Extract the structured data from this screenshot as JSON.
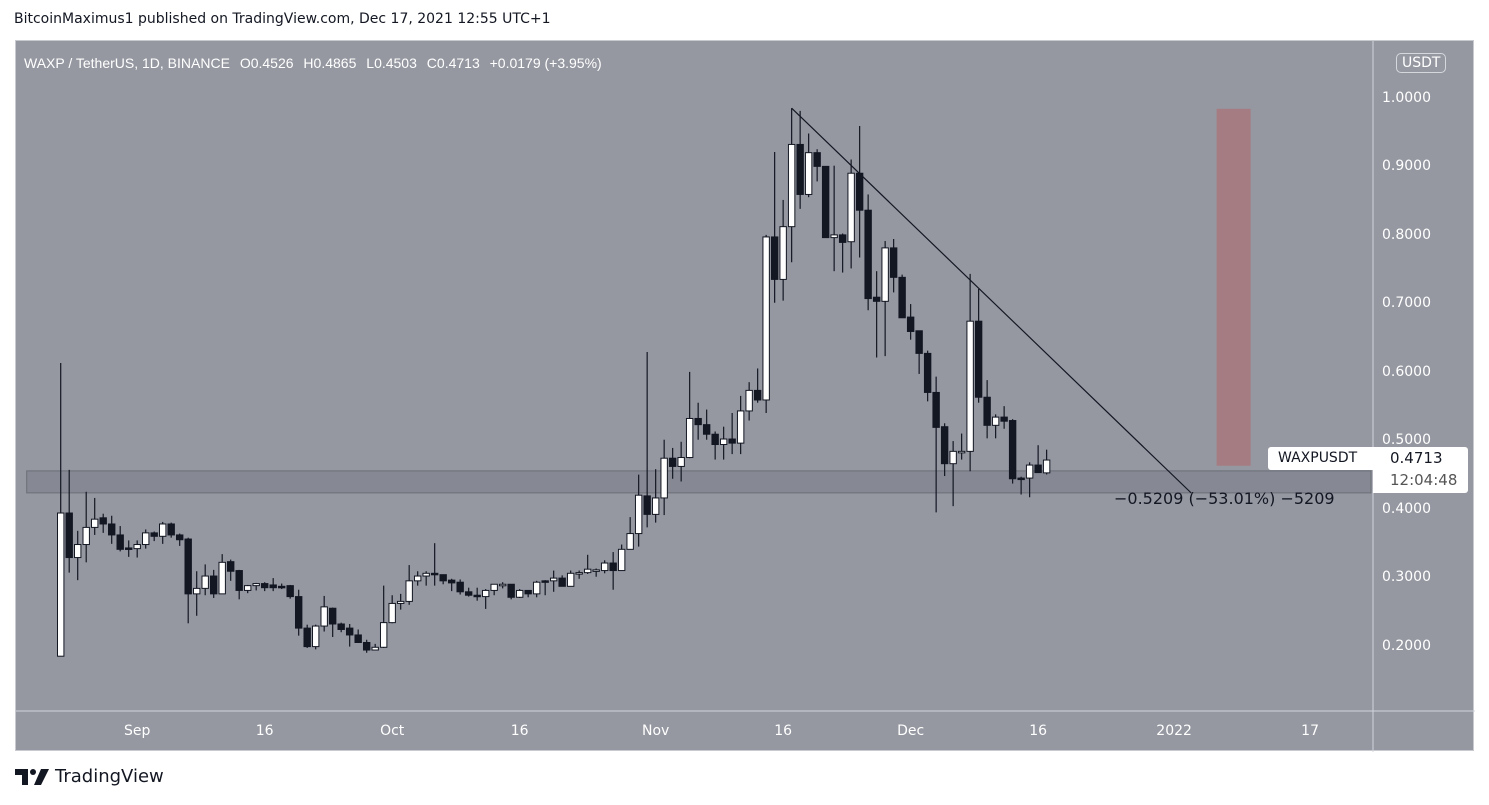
{
  "publish_bar": "BitcoinMaximus1 published on TradingView.com, Dec 17, 2021 12:55 UTC+1",
  "legend": {
    "symbol": "WAXP / TetherUS, 1D, BINANCE",
    "o_key": "O",
    "o": "0.4526",
    "h_key": "H",
    "h": "0.4865",
    "l_key": "L",
    "l": "0.4503",
    "c_key": "C",
    "c": "0.4713",
    "change": "+0.0179 (+3.95%)"
  },
  "price_label": {
    "name": "WAXPUSDT",
    "value": "0.4713",
    "countdown": "12:04:48"
  },
  "measure_label": "−0.5209 (−53.01%) −5209",
  "footer": {
    "brand": "TradingView"
  },
  "colors": {
    "background": "#9598a1",
    "up_body": "#ffffff",
    "down_body": "#131722",
    "zone": "#868993",
    "target_box": "#a67c83",
    "line": "#131722"
  },
  "chart_data": {
    "type": "candlestick",
    "unit": "USDT",
    "ylim": [
      0.105,
      1.083
    ],
    "xlim": [
      "2021-08-17",
      "2022-01-24"
    ],
    "y_ticks": [
      "1.0000",
      "0.9000",
      "0.8000",
      "0.7000",
      "0.6000",
      "0.5000",
      "0.4000",
      "0.3000",
      "0.2000"
    ],
    "x_ticks": [
      {
        "date": "2021-09-01",
        "label": "Sep"
      },
      {
        "date": "2021-09-16",
        "label": "16"
      },
      {
        "date": "2021-10-01",
        "label": "Oct"
      },
      {
        "date": "2021-10-16",
        "label": "16"
      },
      {
        "date": "2021-11-01",
        "label": "Nov"
      },
      {
        "date": "2021-11-16",
        "label": "16"
      },
      {
        "date": "2021-12-01",
        "label": "Dec"
      },
      {
        "date": "2021-12-16",
        "label": "16"
      },
      {
        "date": "2022-01-01",
        "label": "2022"
      },
      {
        "date": "2022-01-17",
        "label": "17"
      }
    ],
    "grid": false,
    "candles_format": [
      "date",
      "open",
      "high",
      "low",
      "close"
    ],
    "candles": [
      [
        "2021-08-23",
        0.185,
        0.613,
        0.185,
        0.394
      ],
      [
        "2021-08-24",
        0.394,
        0.457,
        0.307,
        0.329
      ],
      [
        "2021-08-25",
        0.329,
        0.368,
        0.296,
        0.348
      ],
      [
        "2021-08-26",
        0.348,
        0.425,
        0.322,
        0.373
      ],
      [
        "2021-08-27",
        0.373,
        0.416,
        0.362,
        0.385
      ],
      [
        "2021-08-28",
        0.387,
        0.393,
        0.365,
        0.378
      ],
      [
        "2021-08-29",
        0.378,
        0.39,
        0.349,
        0.362
      ],
      [
        "2021-08-30",
        0.362,
        0.375,
        0.338,
        0.341
      ],
      [
        "2021-08-31",
        0.343,
        0.354,
        0.33,
        0.342
      ],
      [
        "2021-09-01",
        0.342,
        0.354,
        0.329,
        0.348
      ],
      [
        "2021-09-02",
        0.348,
        0.37,
        0.342,
        0.365
      ],
      [
        "2021-09-03",
        0.365,
        0.367,
        0.353,
        0.36
      ],
      [
        "2021-09-04",
        0.36,
        0.381,
        0.349,
        0.378
      ],
      [
        "2021-09-05",
        0.378,
        0.38,
        0.358,
        0.362
      ],
      [
        "2021-09-06",
        0.362,
        0.364,
        0.346,
        0.355
      ],
      [
        "2021-09-07",
        0.356,
        0.358,
        0.233,
        0.276
      ],
      [
        "2021-09-08",
        0.276,
        0.309,
        0.244,
        0.284
      ],
      [
        "2021-09-09",
        0.284,
        0.319,
        0.274,
        0.302
      ],
      [
        "2021-09-10",
        0.302,
        0.311,
        0.27,
        0.276
      ],
      [
        "2021-09-11",
        0.276,
        0.334,
        0.276,
        0.322
      ],
      [
        "2021-09-12",
        0.323,
        0.326,
        0.295,
        0.309
      ],
      [
        "2021-09-13",
        0.31,
        0.311,
        0.268,
        0.281
      ],
      [
        "2021-09-14",
        0.281,
        0.289,
        0.277,
        0.288
      ],
      [
        "2021-09-15",
        0.288,
        0.292,
        0.281,
        0.291
      ],
      [
        "2021-09-16",
        0.291,
        0.293,
        0.28,
        0.285
      ],
      [
        "2021-09-17",
        0.289,
        0.299,
        0.28,
        0.285
      ],
      [
        "2021-09-18",
        0.287,
        0.291,
        0.283,
        0.286
      ],
      [
        "2021-09-19",
        0.288,
        0.289,
        0.269,
        0.272
      ],
      [
        "2021-09-20",
        0.272,
        0.282,
        0.215,
        0.226
      ],
      [
        "2021-09-21",
        0.226,
        0.231,
        0.197,
        0.199
      ],
      [
        "2021-09-22",
        0.199,
        0.231,
        0.195,
        0.229
      ],
      [
        "2021-09-23",
        0.229,
        0.273,
        0.221,
        0.257
      ],
      [
        "2021-09-24",
        0.255,
        0.256,
        0.213,
        0.232
      ],
      [
        "2021-09-25",
        0.232,
        0.234,
        0.22,
        0.224
      ],
      [
        "2021-09-26",
        0.226,
        0.232,
        0.199,
        0.216
      ],
      [
        "2021-09-27",
        0.216,
        0.224,
        0.205,
        0.205
      ],
      [
        "2021-09-28",
        0.205,
        0.209,
        0.19,
        0.194
      ],
      [
        "2021-09-29",
        0.194,
        0.203,
        0.194,
        0.198
      ],
      [
        "2021-09-30",
        0.198,
        0.288,
        0.197,
        0.234
      ],
      [
        "2021-10-01",
        0.234,
        0.274,
        0.233,
        0.262
      ],
      [
        "2021-10-02",
        0.262,
        0.276,
        0.253,
        0.265
      ],
      [
        "2021-10-03",
        0.265,
        0.318,
        0.26,
        0.295
      ],
      [
        "2021-10-04",
        0.295,
        0.309,
        0.288,
        0.302
      ],
      [
        "2021-10-05",
        0.302,
        0.309,
        0.288,
        0.306
      ],
      [
        "2021-10-06",
        0.306,
        0.35,
        0.288,
        0.304
      ],
      [
        "2021-10-07",
        0.304,
        0.304,
        0.29,
        0.295
      ],
      [
        "2021-10-08",
        0.296,
        0.298,
        0.28,
        0.292
      ],
      [
        "2021-10-09",
        0.293,
        0.297,
        0.275,
        0.279
      ],
      [
        "2021-10-10",
        0.279,
        0.285,
        0.272,
        0.274
      ],
      [
        "2021-10-11",
        0.274,
        0.285,
        0.266,
        0.273
      ],
      [
        "2021-10-12",
        0.272,
        0.283,
        0.254,
        0.281
      ],
      [
        "2021-10-13",
        0.281,
        0.29,
        0.274,
        0.29
      ],
      [
        "2021-10-14",
        0.289,
        0.293,
        0.284,
        0.29
      ],
      [
        "2021-10-15",
        0.29,
        0.29,
        0.268,
        0.271
      ],
      [
        "2021-10-16",
        0.271,
        0.283,
        0.27,
        0.281
      ],
      [
        "2021-10-17",
        0.281,
        0.281,
        0.271,
        0.276
      ],
      [
        "2021-10-18",
        0.276,
        0.295,
        0.271,
        0.293
      ],
      [
        "2021-10-19",
        0.295,
        0.296,
        0.274,
        0.294
      ],
      [
        "2021-10-20",
        0.295,
        0.31,
        0.279,
        0.299
      ],
      [
        "2021-10-21",
        0.299,
        0.303,
        0.287,
        0.287
      ],
      [
        "2021-10-22",
        0.287,
        0.31,
        0.287,
        0.306
      ],
      [
        "2021-10-23",
        0.306,
        0.31,
        0.298,
        0.307
      ],
      [
        "2021-10-24",
        0.307,
        0.333,
        0.305,
        0.312
      ],
      [
        "2021-10-25",
        0.311,
        0.313,
        0.301,
        0.311
      ],
      [
        "2021-10-26",
        0.31,
        0.325,
        0.306,
        0.321
      ],
      [
        "2021-10-27",
        0.321,
        0.337,
        0.282,
        0.31
      ],
      [
        "2021-10-28",
        0.31,
        0.348,
        0.31,
        0.341
      ],
      [
        "2021-10-29",
        0.341,
        0.388,
        0.341,
        0.364
      ],
      [
        "2021-10-30",
        0.364,
        0.45,
        0.345,
        0.42
      ],
      [
        "2021-10-31",
        0.419,
        0.629,
        0.373,
        0.392
      ],
      [
        "2021-11-01",
        0.392,
        0.458,
        0.38,
        0.416
      ],
      [
        "2021-11-02",
        0.416,
        0.501,
        0.391,
        0.474
      ],
      [
        "2021-11-03",
        0.474,
        0.489,
        0.444,
        0.462
      ],
      [
        "2021-11-04",
        0.462,
        0.498,
        0.44,
        0.475
      ],
      [
        "2021-11-05",
        0.475,
        0.6,
        0.474,
        0.532
      ],
      [
        "2021-11-06",
        0.532,
        0.555,
        0.501,
        0.523
      ],
      [
        "2021-11-07",
        0.523,
        0.545,
        0.501,
        0.509
      ],
      [
        "2021-11-08",
        0.509,
        0.513,
        0.472,
        0.494
      ],
      [
        "2021-11-09",
        0.494,
        0.52,
        0.472,
        0.502
      ],
      [
        "2021-11-10",
        0.502,
        0.54,
        0.48,
        0.496
      ],
      [
        "2021-11-11",
        0.496,
        0.565,
        0.48,
        0.543
      ],
      [
        "2021-11-12",
        0.543,
        0.585,
        0.529,
        0.573
      ],
      [
        "2021-11-13",
        0.573,
        0.605,
        0.555,
        0.559
      ],
      [
        "2021-11-14",
        0.559,
        0.8,
        0.54,
        0.797
      ],
      [
        "2021-11-15",
        0.797,
        0.921,
        0.701,
        0.735
      ],
      [
        "2021-11-16",
        0.735,
        0.851,
        0.704,
        0.812
      ],
      [
        "2021-11-17",
        0.812,
        0.985,
        0.76,
        0.932
      ],
      [
        "2021-11-18",
        0.932,
        0.981,
        0.838,
        0.859
      ],
      [
        "2021-11-19",
        0.859,
        0.948,
        0.855,
        0.92
      ],
      [
        "2021-11-20",
        0.92,
        0.925,
        0.878,
        0.9
      ],
      [
        "2021-11-21",
        0.9,
        0.9,
        0.796,
        0.796
      ],
      [
        "2021-11-22",
        0.796,
        0.901,
        0.747,
        0.8
      ],
      [
        "2021-11-23",
        0.8,
        0.802,
        0.745,
        0.789
      ],
      [
        "2021-11-24",
        0.79,
        0.91,
        0.751,
        0.89
      ],
      [
        "2021-11-25",
        0.89,
        0.959,
        0.767,
        0.836
      ],
      [
        "2021-11-26",
        0.836,
        0.859,
        0.69,
        0.707
      ],
      [
        "2021-11-27",
        0.709,
        0.747,
        0.621,
        0.703
      ],
      [
        "2021-11-28",
        0.703,
        0.791,
        0.623,
        0.781
      ],
      [
        "2021-11-29",
        0.781,
        0.794,
        0.716,
        0.738
      ],
      [
        "2021-11-30",
        0.738,
        0.742,
        0.679,
        0.679
      ],
      [
        "2021-12-01",
        0.68,
        0.699,
        0.647,
        0.659
      ],
      [
        "2021-12-02",
        0.66,
        0.66,
        0.597,
        0.627
      ],
      [
        "2021-12-03",
        0.627,
        0.631,
        0.557,
        0.57
      ],
      [
        "2021-12-04",
        0.57,
        0.593,
        0.395,
        0.519
      ],
      [
        "2021-12-05",
        0.52,
        0.525,
        0.448,
        0.466
      ],
      [
        "2021-12-06",
        0.466,
        0.499,
        0.404,
        0.484
      ],
      [
        "2021-12-07",
        0.484,
        0.51,
        0.472,
        0.484
      ],
      [
        "2021-12-08",
        0.484,
        0.743,
        0.455,
        0.674
      ],
      [
        "2021-12-09",
        0.674,
        0.721,
        0.555,
        0.563
      ],
      [
        "2021-12-10",
        0.563,
        0.588,
        0.503,
        0.522
      ],
      [
        "2021-12-11",
        0.522,
        0.538,
        0.503,
        0.534
      ],
      [
        "2021-12-12",
        0.534,
        0.55,
        0.517,
        0.528
      ],
      [
        "2021-12-13",
        0.529,
        0.531,
        0.437,
        0.444
      ],
      [
        "2021-12-14",
        0.445,
        0.447,
        0.421,
        0.444
      ],
      [
        "2021-12-15",
        0.445,
        0.468,
        0.417,
        0.464
      ],
      [
        "2021-12-16",
        0.464,
        0.493,
        0.453,
        0.453
      ],
      [
        "2021-12-17",
        0.4526,
        0.4865,
        0.4503,
        0.4713
      ]
    ],
    "annotations": {
      "support_zone": {
        "from": "2021-08-19",
        "to": "2022-01-24",
        "low": 0.4234,
        "high": 0.4555
      },
      "trendline": {
        "start": [
          "2021-11-17",
          0.985
        ],
        "end": [
          "2022-01-03",
          0.4234
        ]
      },
      "target_box": {
        "from": "2022-01-06",
        "to": "2022-01-10",
        "low": 0.463,
        "high": 0.984
      },
      "last_price": 0.4713
    }
  }
}
